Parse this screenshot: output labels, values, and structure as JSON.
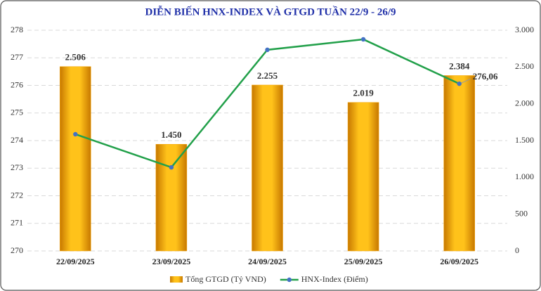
{
  "chart_data": {
    "type": "combo",
    "title": "DIỄN BIẾN HNX-INDEX VÀ GTGD TUẦN 22/9 - 26/9",
    "categories": [
      "22/09/2025",
      "23/09/2025",
      "24/09/2025",
      "25/09/2025",
      "26/09/2025"
    ],
    "series": [
      {
        "name": "Tổng GTGD (Tỷ VND)",
        "type": "bar",
        "axis": "y2",
        "color": "#f5a300",
        "values": [
          2506,
          1450,
          2255,
          2019,
          2384
        ],
        "value_labels": [
          "2.506",
          "1.450",
          "2.255",
          "2.019",
          "2.384"
        ]
      },
      {
        "name": "HNX-Index (Điểm)",
        "type": "line",
        "axis": "y",
        "color": "#22a04a",
        "marker_color": "#4472c4",
        "values": [
          274.23,
          273.03,
          277.29,
          277.67,
          276.06
        ],
        "value_labels": [
          null,
          null,
          null,
          null,
          "276,06"
        ]
      }
    ],
    "ylim": [
      270,
      278
    ],
    "yticks": [
      270,
      271,
      272,
      273,
      274,
      275,
      276,
      277,
      278
    ],
    "y2lim": [
      0,
      3000
    ],
    "y2ticks": [
      0,
      500,
      {
        "value": 1000,
        "label": "1.000"
      },
      {
        "value": 1500,
        "label": "1.500"
      },
      {
        "value": 2000,
        "label": "2.000"
      },
      {
        "value": 2500,
        "label": "2.500"
      },
      {
        "value": 3000,
        "label": "3.000"
      }
    ],
    "grid": true,
    "legend": "bottom"
  }
}
